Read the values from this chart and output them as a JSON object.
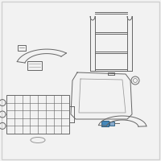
{
  "background_color": "#f2f2f2",
  "border_color": "#d0d0d0",
  "lc": "#999999",
  "lcd": "#666666",
  "blue": "#4488bb",
  "blue2": "#88aacc",
  "fig_width": 2.0,
  "fig_height": 2.0,
  "dpi": 100
}
